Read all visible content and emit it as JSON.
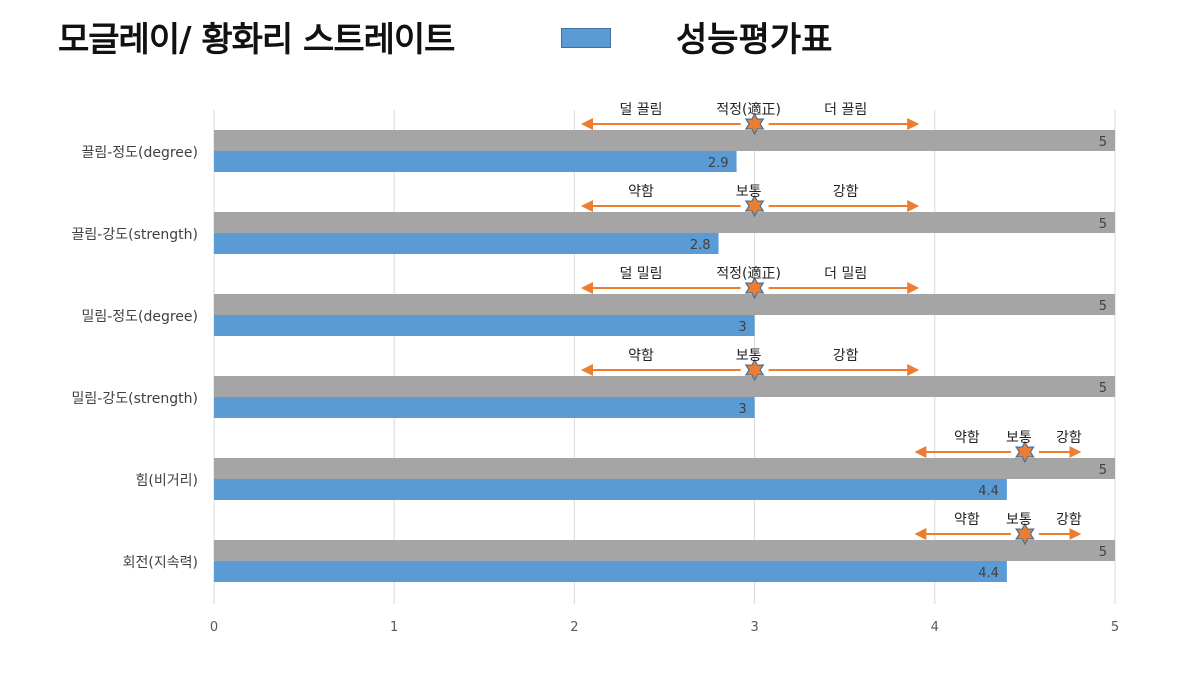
{
  "title": "모글레이/ 황화리 스트레이트",
  "chart_data": {
    "type": "bar",
    "orientation": "horizontal",
    "categories": [
      "끌림-정도(degree)",
      "끌림-강도(strength)",
      "밀림-정도(degree)",
      "밀림-강도(strength)",
      "힘(비거리)",
      "회전(지속력)"
    ],
    "series": [
      {
        "name": "",
        "color": "#a5a5a5",
        "values": [
          5,
          5,
          5,
          5,
          5,
          5
        ]
      },
      {
        "name": "성능평가표",
        "color": "#5b9bd5",
        "values": [
          2.9,
          2.8,
          3,
          3,
          4.4,
          4.4
        ]
      }
    ],
    "xlim": [
      0,
      5
    ],
    "xticks": [
      0,
      1,
      2,
      3,
      4,
      5
    ],
    "grid": "vertical",
    "legend": "top",
    "annotations": [
      {
        "left": "덜 끌림",
        "center": "적정(適正)",
        "right": "더 끌림",
        "star": 3,
        "arrow_from": 2.05,
        "arrow_to": 3.9
      },
      {
        "left": "약함",
        "center": "보통",
        "right": "강함",
        "star": 3,
        "arrow_from": 2.05,
        "arrow_to": 3.9
      },
      {
        "left": "덜 밀림",
        "center": "적정(適正)",
        "right": "더 밀림",
        "star": 3,
        "arrow_from": 2.05,
        "arrow_to": 3.9
      },
      {
        "left": "약함",
        "center": "보통",
        "right": "강함",
        "star": 3,
        "arrow_from": 2.05,
        "arrow_to": 3.9
      },
      {
        "left": "약함",
        "center": "보통",
        "right": "강함",
        "star": 4.5,
        "arrow_from": 3.9,
        "arrow_to": 4.8
      },
      {
        "left": "약함",
        "center": "보통",
        "right": "강함",
        "star": 4.5,
        "arrow_from": 3.9,
        "arrow_to": 4.8
      }
    ],
    "colors": {
      "arrow": "#ed7d31",
      "star_fill": "#ed7d31",
      "star_stroke": "#44719c"
    }
  }
}
